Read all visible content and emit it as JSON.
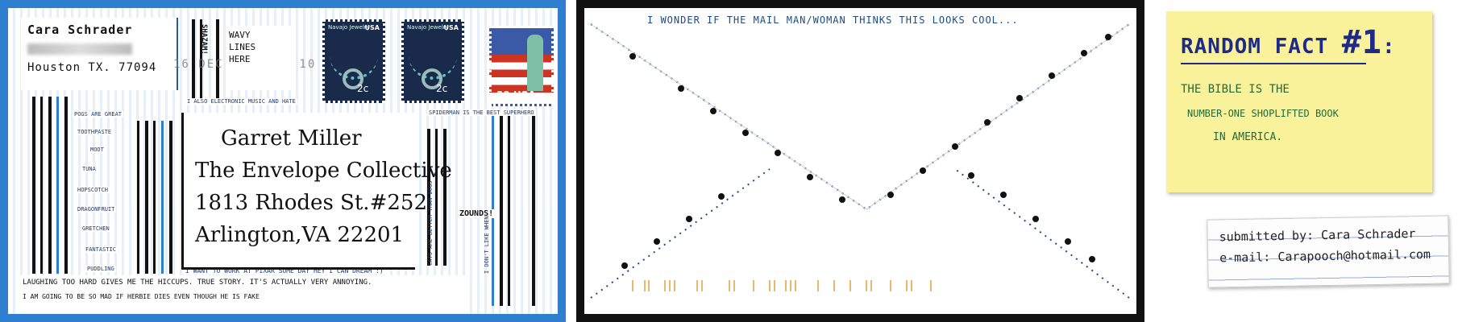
{
  "front": {
    "return_name": "Cara Schrader",
    "return_city": "Houston TX. 77094",
    "postmark_text": "16 DEC 2006 PM 10",
    "side_label": "SHAZAM!",
    "wavy_text": [
      "WAVY",
      "LINES",
      "HERE"
    ],
    "stamps": [
      {
        "label": "Navajo Jewelry",
        "country": "USA",
        "value": "2c"
      },
      {
        "label": "Navajo Jewelry",
        "country": "USA",
        "value": "2c"
      }
    ],
    "flag_stamp_value": "39 USA",
    "address": {
      "name": "Garret Miller",
      "org": "The Envelope Collective",
      "street": "1813 Rhodes St.#252",
      "city": "Arlington,VA 22201"
    },
    "notes": {
      "top_strip": "I ALSO ELECTRONIC MUSIC AND HATE",
      "pogs": "POGS ARE GREAT",
      "spider": "SPIDERMAN IS THE BEST SUPERHERO",
      "dislikes": "I DON'T LIKE WHEN",
      "cats": "CATS ARE BETTER THAN DOGS",
      "zounds": "ZOUNDS!",
      "pixar": "I WANT TO WORK AT PIXAR SOME DAY HEY I CAN DREAM :)",
      "labels": [
        "TOOTHPASTE",
        "MOOT",
        "TUNA",
        "HOPSCOTCH",
        "DRAGONFRUIT",
        "GRETCHEN",
        "FANTASTIC",
        "PUDDLING"
      ]
    },
    "bottom_lines": [
      "LAUGHING TOO HARD GIVES ME THE HICCUPS. TRUE STORY. IT'S ACTUALLY VERY ANNOYING.",
      "I AM GOING TO BE SO MAD IF HERBIE DIES EVEN THOUGH HE IS FAKE"
    ]
  },
  "back": {
    "note": "I WONDER IF THE MAIL MAN/WOMAN THINKS THIS LOOKS COOL..."
  },
  "sticky": {
    "title_a": "RANDOM FACT ",
    "title_b": "#1",
    "title_c": ":",
    "line1": "THE BIBLE IS THE",
    "line2": "NUMBER-ONE SHOPLIFTED BOOK",
    "line3": "IN AMERICA."
  },
  "card": {
    "submitted": "submitted by: Cara Schrader",
    "email": "e-mail: Carapooch@hotmail.com"
  }
}
